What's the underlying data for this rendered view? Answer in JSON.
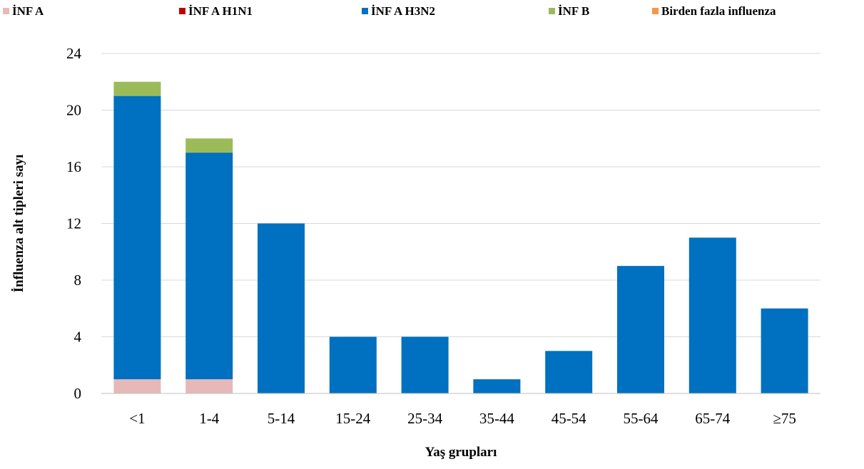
{
  "chart_data": {
    "type": "bar",
    "stacked": true,
    "title": "",
    "xlabel": "Yaş grupları",
    "ylabel": "İnfluenza alt tipleri sayı",
    "ylim": [
      0,
      24
    ],
    "yticks": [
      "0",
      "4",
      "8",
      "12",
      "16",
      "20",
      "24"
    ],
    "grid": true,
    "legend_position": "top",
    "categories": [
      "<1",
      "1-4",
      "5-14",
      "15-24",
      "25-34",
      "35-44",
      "45-54",
      "55-64",
      "65-74",
      "≥75"
    ],
    "series": [
      {
        "name": "İNF A",
        "color": "#e6b9b8",
        "values": [
          1,
          1,
          0,
          0,
          0,
          0,
          0,
          0,
          0,
          0
        ]
      },
      {
        "name": "İNF A H1N1",
        "color": "#c00000",
        "values": [
          0,
          0,
          0,
          0,
          0,
          0,
          0,
          0,
          0,
          0
        ]
      },
      {
        "name": "İNF A H3N2",
        "color": "#0070c0",
        "values": [
          20,
          16,
          12,
          4,
          4,
          1,
          3,
          9,
          11,
          6
        ]
      },
      {
        "name": "İNF B",
        "color": "#9bbb59",
        "values": [
          1,
          1,
          0,
          0,
          0,
          0,
          0,
          0,
          0,
          0
        ]
      },
      {
        "name": "Birden fazla influenza",
        "color": "#f79646",
        "values": [
          0,
          0,
          0,
          0,
          0,
          0,
          0,
          0,
          0,
          0
        ]
      }
    ]
  }
}
